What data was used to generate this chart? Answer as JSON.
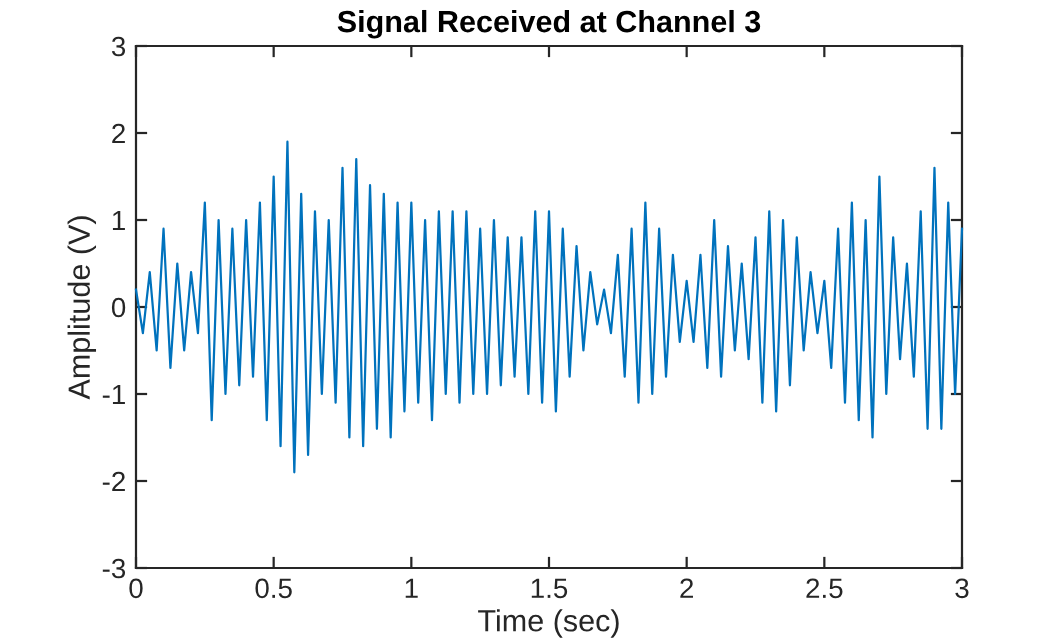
{
  "chart_data": {
    "type": "line",
    "title": "Signal Received at Channel 3",
    "xlabel": "Time (sec)",
    "ylabel": "Amplitude (V)",
    "xlim": [
      0,
      3
    ],
    "xticks": [
      0,
      0.5,
      1,
      1.5,
      2,
      2.5,
      3
    ],
    "ylim": [
      -3,
      3
    ],
    "yticks": [
      -3,
      -2,
      -1,
      0,
      1,
      2,
      3
    ],
    "grid": false,
    "marker": "none",
    "line_style": "solid",
    "x": [
      0,
      0.025,
      0.05,
      0.075,
      0.1,
      0.125,
      0.15,
      0.175,
      0.2,
      0.225,
      0.25,
      0.275,
      0.3,
      0.325,
      0.35,
      0.375,
      0.4,
      0.425,
      0.45,
      0.475,
      0.5,
      0.525,
      0.55,
      0.575,
      0.6,
      0.625,
      0.65,
      0.675,
      0.7,
      0.725,
      0.75,
      0.775,
      0.8,
      0.825,
      0.85,
      0.875,
      0.9,
      0.925,
      0.95,
      0.975,
      1,
      1.025,
      1.05,
      1.075,
      1.1,
      1.125,
      1.15,
      1.175,
      1.2,
      1.225,
      1.25,
      1.275,
      1.3,
      1.325,
      1.35,
      1.375,
      1.4,
      1.425,
      1.45,
      1.475,
      1.5,
      1.525,
      1.55,
      1.575,
      1.6,
      1.625,
      1.65,
      1.675,
      1.7,
      1.725,
      1.75,
      1.775,
      1.8,
      1.825,
      1.85,
      1.875,
      1.9,
      1.925,
      1.95,
      1.975,
      2,
      2.025,
      2.05,
      2.075,
      2.1,
      2.125,
      2.15,
      2.175,
      2.2,
      2.225,
      2.25,
      2.275,
      2.3,
      2.325,
      2.35,
      2.375,
      2.4,
      2.425,
      2.45,
      2.475,
      2.5,
      2.525,
      2.55,
      2.575,
      2.6,
      2.625,
      2.65,
      2.675,
      2.7,
      2.725,
      2.75,
      2.775,
      2.8,
      2.825,
      2.85,
      2.875,
      2.9,
      2.925,
      2.95,
      2.975,
      3
    ],
    "series": [
      {
        "color": "#0072bd",
        "values": [
          0.2,
          -0.3,
          0.4,
          -0.5,
          0.9,
          -0.7,
          0.5,
          -0.5,
          0.4,
          -0.3,
          1.2,
          -1.3,
          1.0,
          -1.0,
          0.9,
          -0.9,
          1.0,
          -0.8,
          1.2,
          -1.3,
          1.5,
          -1.6,
          1.9,
          -1.9,
          1.3,
          -1.7,
          1.1,
          -1.0,
          1.0,
          -1.1,
          1.6,
          -1.5,
          1.7,
          -1.6,
          1.4,
          -1.4,
          1.3,
          -1.5,
          1.2,
          -1.2,
          1.2,
          -1.1,
          1.0,
          -1.3,
          1.1,
          -1.0,
          1.1,
          -1.1,
          1.1,
          -1.0,
          0.9,
          -1.0,
          1.0,
          -0.9,
          0.8,
          -0.8,
          0.8,
          -1.0,
          1.1,
          -1.1,
          1.1,
          -1.2,
          0.9,
          -0.8,
          0.7,
          -0.5,
          0.4,
          -0.2,
          0.2,
          -0.3,
          0.6,
          -0.8,
          0.9,
          -1.1,
          1.2,
          -1.0,
          0.9,
          -0.8,
          0.6,
          -0.4,
          0.3,
          -0.4,
          0.6,
          -0.7,
          1.0,
          -0.8,
          0.7,
          -0.5,
          0.5,
          -0.6,
          0.8,
          -1.1,
          1.1,
          -1.2,
          1.0,
          -0.9,
          0.8,
          -0.5,
          0.4,
          -0.3,
          0.3,
          -0.7,
          0.9,
          -1.1,
          1.2,
          -1.3,
          1.0,
          -1.5,
          1.5,
          -1.0,
          0.8,
          -0.6,
          0.5,
          -0.8,
          1.1,
          -1.4,
          1.6,
          -1.4,
          1.2,
          -1.0,
          0.9
        ]
      }
    ]
  }
}
